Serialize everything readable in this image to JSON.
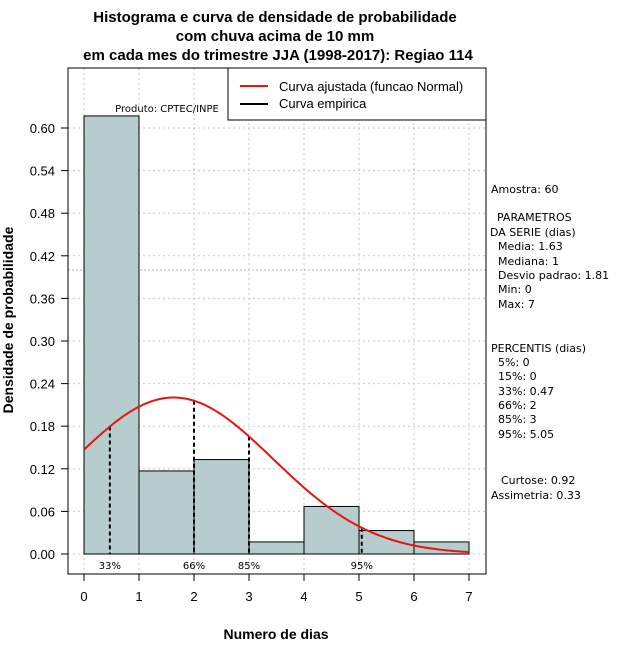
{
  "chart_data": {
    "type": "histogram",
    "title_lines": [
      "Histograma e curva de densidade de probabilidade",
      "com chuva acima de 10 mm",
      "em cada mes do trimestre JJA (1998-2017): Regiao 114"
    ],
    "xlabel": "Numero de dias",
    "ylabel": "Densidade de probabilidade",
    "xlim": [
      -0.1,
      7.3
    ],
    "ylim": [
      -0.015,
      0.66
    ],
    "x_ticks": [
      0,
      1,
      2,
      3,
      4,
      5,
      6,
      7
    ],
    "y_ticks": [
      0.0,
      0.06,
      0.12,
      0.18,
      0.24,
      0.3,
      0.36,
      0.42,
      0.48,
      0.54,
      0.6
    ],
    "y_tick_labels": [
      "0.00",
      "0.06",
      "0.12",
      "0.18",
      "0.24",
      "0.30",
      "0.36",
      "0.42",
      "0.48",
      "0.54",
      "0.60"
    ],
    "grid": true,
    "highlight_y": 0.4,
    "bins": [
      {
        "from": 0,
        "to": 1,
        "density": 0.617
      },
      {
        "from": 1,
        "to": 2,
        "density": 0.117
      },
      {
        "from": 2,
        "to": 3,
        "density": 0.133
      },
      {
        "from": 3,
        "to": 4,
        "density": 0.017
      },
      {
        "from": 4,
        "to": 5,
        "density": 0.067
      },
      {
        "from": 5,
        "to": 6,
        "density": 0.033
      },
      {
        "from": 6,
        "to": 7,
        "density": 0.017
      }
    ],
    "bar_color": "#b7cdcd",
    "normal_fit": {
      "mean": 1.63,
      "sd": 1.81,
      "x_from": 0,
      "x_to": 7,
      "color": "#e8140f"
    },
    "percentile_markers": [
      {
        "label": "33%",
        "x": 0.47
      },
      {
        "label": "66%",
        "x": 2
      },
      {
        "label": "85%",
        "x": 3
      },
      {
        "label": "95%",
        "x": 5.05
      }
    ],
    "product_label": "Produto: CPTEC/INPE",
    "legend": [
      {
        "label": "Curva ajustada (funcao Normal)",
        "color": "#e8140f"
      },
      {
        "label": "Curva empirica",
        "color": "#000000"
      }
    ]
  },
  "stats_panel": {
    "amostra": "Amostra: 60",
    "params_title_1": "PARAMETROS",
    "params_title_2": "DA SERIE (dias)",
    "media": "Media: 1.63",
    "mediana": "Mediana: 1",
    "desvio": "Desvio padrao: 1.81",
    "min": "Min: 0",
    "max": "Max: 7",
    "percentis_title": "PERCENTIS (dias)",
    "p5": "5%: 0",
    "p15": "15%: 0",
    "p33": "33%: 0.47",
    "p66": "66%: 2",
    "p85": "85%: 3",
    "p95": "95%: 5.05",
    "curtose": "Curtose: 0.92",
    "assimetria": "Assimetria: 0.33"
  }
}
